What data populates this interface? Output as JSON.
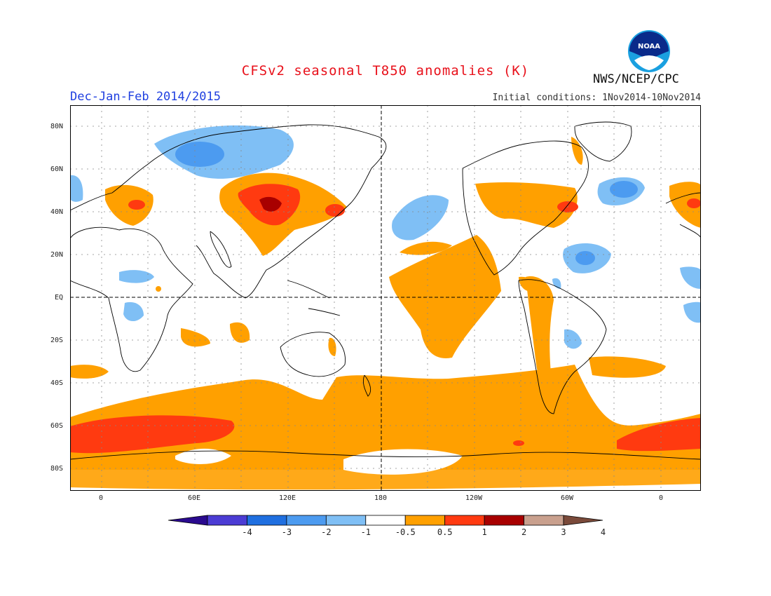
{
  "header": {
    "title": "CFSv2 seasonal T850 anomalies (K)",
    "period": "Dec-Jan-Feb 2014/2015",
    "initial_conditions": "Initial conditions: 1Nov2014-10Nov2014",
    "agency": "NWS/NCEP/CPC",
    "logo_text": "NOAA"
  },
  "map": {
    "projection": "equirectangular",
    "lat_ticks": [
      "80N",
      "60N",
      "40N",
      "20N",
      "EQ",
      "20S",
      "40S",
      "60S",
      "80S"
    ],
    "lon_ticks": [
      "0",
      "60E",
      "120E",
      "180",
      "120W",
      "60W",
      "0"
    ],
    "grid": true
  },
  "colorbar": {
    "labels": [
      "-4",
      "-3",
      "-2",
      "-1",
      "-0.5",
      "0.5",
      "1",
      "2",
      "3",
      "4"
    ],
    "colors": [
      "#2a0a8f",
      "#4b3cd4",
      "#1f6fe0",
      "#4c9bf0",
      "#7fbff5",
      "#ffffff",
      "#ffa000",
      "#ff3a10",
      "#a80000",
      "#c9a08e",
      "#7a4a3a"
    ]
  }
}
